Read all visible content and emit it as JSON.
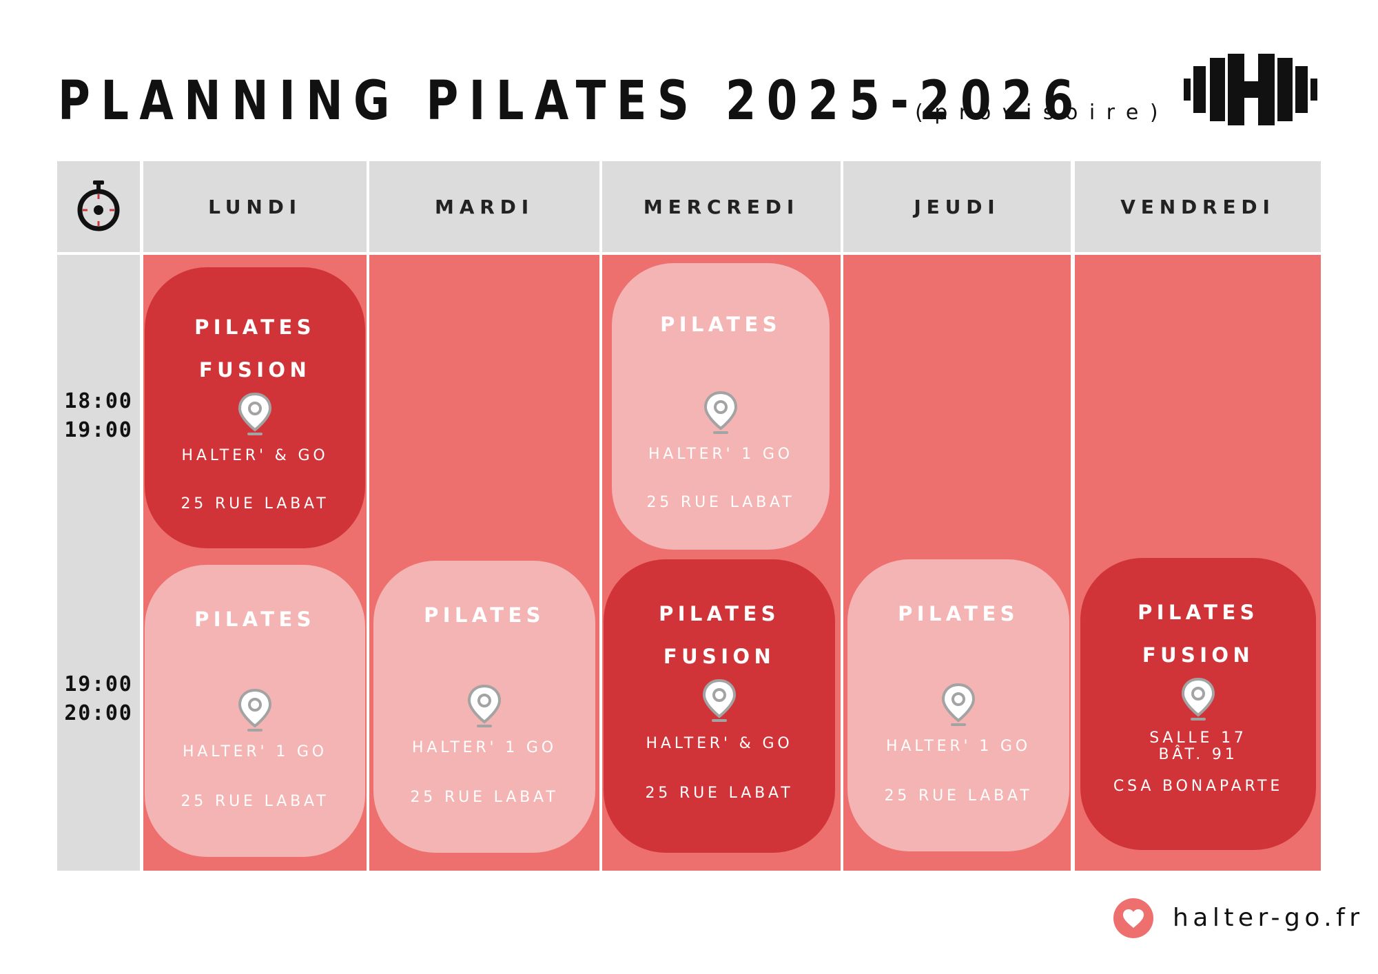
{
  "header": {
    "title": "PLANNING PILATES 2025-2026",
    "subtitle": "(provisoire)",
    "logo_icon": "dumbbell-h-logo"
  },
  "table": {
    "corner_icon": "stopwatch-icon",
    "days": [
      "LUNDI",
      "MARDI",
      "MERCREDI",
      "JEUDI",
      "VENDREDI"
    ],
    "slots": [
      {
        "start": "18:00",
        "end": "19:00"
      },
      {
        "start": "19:00",
        "end": "20:00"
      }
    ],
    "sessions": [
      {
        "day": "LUNDI",
        "slot": "18:00",
        "style": "dark",
        "title_1": "PILATES",
        "title_2": "FUSION",
        "location_1": "HALTER' & GO",
        "location_2": "25 RUE LABAT"
      },
      {
        "day": "MERCREDI",
        "slot": "18:00",
        "style": "light",
        "title_1": "PILATES",
        "location_1": "HALTER' 1 GO",
        "location_2": "25 RUE LABAT"
      },
      {
        "day": "LUNDI",
        "slot": "19:00",
        "style": "light",
        "title_1": "PILATES",
        "location_1": "HALTER' 1 GO",
        "location_2": "25 RUE LABAT"
      },
      {
        "day": "MARDI",
        "slot": "19:00",
        "style": "light",
        "title_1": "PILATES",
        "location_1": "HALTER' 1 GO",
        "location_2": "25 RUE LABAT"
      },
      {
        "day": "MERCREDI",
        "slot": "19:00",
        "style": "dark",
        "title_1": "PILATES",
        "title_2": "FUSION",
        "location_1": "HALTER' & GO",
        "location_2": "25 RUE LABAT"
      },
      {
        "day": "JEUDI",
        "slot": "19:00",
        "style": "light",
        "title_1": "PILATES",
        "location_1": "HALTER' 1 GO",
        "location_2": "25 RUE LABAT"
      },
      {
        "day": "VENDREDI",
        "slot": "19:00",
        "style": "dark",
        "title_1": "PILATES",
        "title_2": "FUSION",
        "location_1": "SALLE 17",
        "location_1b": "BÂT. 91",
        "location_2": "CSA BONAPARTE"
      }
    ],
    "location_icon": "map-pin-icon",
    "colors": {
      "header_bg": "#dcdcdc",
      "column_bg": "#ed6f6e",
      "dark_card": "#d13438",
      "light_card": "#f4b4b3"
    }
  },
  "footer": {
    "icon": "heart-icon",
    "url": "halter-go.fr"
  }
}
